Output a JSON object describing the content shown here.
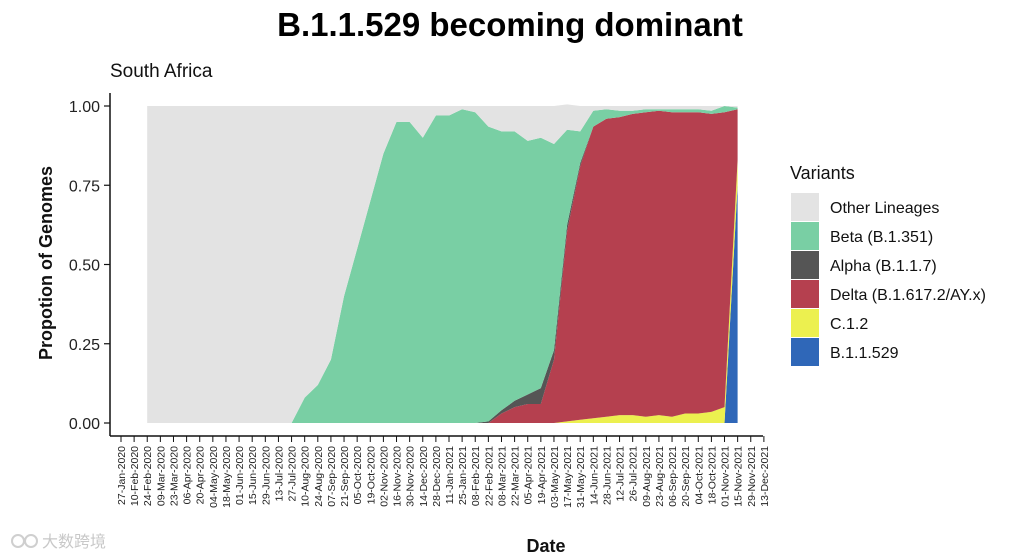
{
  "watermark": {
    "text": "大数跨境",
    "icon": "owl-logo"
  },
  "chart_data": {
    "type": "area",
    "title": "B.1.1.529 becoming dominant",
    "subtitle": "South Africa",
    "xlabel": "Date",
    "ylabel": "Propotion of Genomes",
    "ylim": [
      0,
      1
    ],
    "yticks": [
      0,
      0.25,
      0.5,
      0.75,
      1
    ],
    "ytick_labels": [
      "0.00",
      "0.25",
      "0.50",
      "0.75",
      "1.00"
    ],
    "grid": false,
    "stacked": true,
    "legend": {
      "title": "Variants",
      "placement": "right",
      "entries": [
        "Other Lineages",
        "Beta (B.1.351)",
        "Alpha (B.1.1.7)",
        "Delta (B.1.617.2/AY.x)",
        "C.1.2",
        "B.1.1.529"
      ]
    },
    "x": [
      "27-Jan-2020",
      "10-Feb-2020",
      "24-Feb-2020",
      "09-Mar-2020",
      "23-Mar-2020",
      "06-Apr-2020",
      "20-Apr-2020",
      "04-May-2020",
      "18-May-2020",
      "01-Jun-2020",
      "15-Jun-2020",
      "29-Jun-2020",
      "13-Jul-2020",
      "27-Jul-2020",
      "10-Aug-2020",
      "24-Aug-2020",
      "07-Sep-2020",
      "21-Sep-2020",
      "05-Oct-2020",
      "19-Oct-2020",
      "02-Nov-2020",
      "16-Nov-2020",
      "30-Nov-2020",
      "14-Dec-2020",
      "28-Dec-2020",
      "11-Jan-2021",
      "25-Jan-2021",
      "08-Feb-2021",
      "22-Feb-2021",
      "08-Mar-2021",
      "22-Mar-2021",
      "05-Apr-2021",
      "19-Apr-2021",
      "03-May-2021",
      "17-May-2021",
      "31-May-2021",
      "14-Jun-2021",
      "28-Jun-2021",
      "12-Jul-2021",
      "26-Jul-2021",
      "09-Aug-2021",
      "23-Aug-2021",
      "06-Sep-2021",
      "20-Sep-2021",
      "04-Oct-2021",
      "18-Oct-2021",
      "01-Nov-2021",
      "15-Nov-2021",
      "29-Nov-2021",
      "13-Dec-2021"
    ],
    "series": [
      {
        "name": "B.1.1.529",
        "color": "#2f67b8",
        "values": [
          null,
          null,
          0,
          0,
          0,
          0,
          0,
          0,
          0,
          0,
          0,
          0,
          0,
          0,
          0,
          0,
          0,
          0,
          0,
          0,
          0,
          0,
          0,
          0,
          0,
          0,
          0,
          0,
          0,
          0,
          0,
          0,
          0,
          0,
          0,
          0,
          0,
          0,
          0,
          0,
          0,
          0,
          0,
          0,
          0,
          0,
          0,
          0.75,
          null,
          null
        ]
      },
      {
        "name": "C.1.2",
        "color": "#ecf04f",
        "values": [
          null,
          null,
          0,
          0,
          0,
          0,
          0,
          0,
          0,
          0,
          0,
          0,
          0,
          0,
          0,
          0,
          0,
          0,
          0,
          0,
          0,
          0,
          0,
          0,
          0,
          0,
          0,
          0,
          0,
          0,
          0,
          0,
          0,
          0,
          0.005,
          0.01,
          0.015,
          0.02,
          0.025,
          0.025,
          0.02,
          0.025,
          0.02,
          0.03,
          0.03,
          0.035,
          0.05,
          0.08,
          null,
          null
        ]
      },
      {
        "name": "Delta (B.1.617.2/AY.x)",
        "color": "#b5404f",
        "values": [
          null,
          null,
          0,
          0,
          0,
          0,
          0,
          0,
          0,
          0,
          0,
          0,
          0,
          0,
          0,
          0,
          0,
          0,
          0,
          0,
          0,
          0,
          0,
          0,
          0,
          0,
          0,
          0,
          0,
          0.03,
          0.05,
          0.06,
          0.06,
          0.2,
          0.6,
          0.8,
          0.92,
          0.94,
          0.94,
          0.95,
          0.96,
          0.96,
          0.96,
          0.95,
          0.95,
          0.94,
          0.93,
          0.16,
          null,
          null
        ]
      },
      {
        "name": "Alpha (B.1.1.7)",
        "color": "#555555",
        "values": [
          null,
          null,
          0,
          0,
          0,
          0,
          0,
          0,
          0,
          0,
          0,
          0,
          0,
          0,
          0,
          0,
          0,
          0,
          0,
          0,
          0,
          0,
          0,
          0,
          0,
          0,
          0,
          0,
          0.005,
          0.01,
          0.02,
          0.03,
          0.05,
          0.03,
          0.02,
          0.01,
          0,
          0,
          0,
          0,
          0,
          0,
          0,
          0,
          0,
          0,
          0,
          0,
          null,
          null
        ]
      },
      {
        "name": "Beta (B.1.351)",
        "color": "#79cfa4",
        "values": [
          null,
          null,
          0,
          0,
          0,
          0,
          0,
          0,
          0,
          0,
          0,
          0,
          0,
          0,
          0.08,
          0.12,
          0.2,
          0.4,
          0.55,
          0.7,
          0.85,
          0.95,
          0.95,
          0.9,
          0.97,
          0.97,
          0.99,
          0.98,
          0.93,
          0.88,
          0.85,
          0.8,
          0.79,
          0.65,
          0.3,
          0.1,
          0.05,
          0.03,
          0.02,
          0.01,
          0.01,
          0.005,
          0.01,
          0.01,
          0.01,
          0.01,
          0.02,
          0.005,
          null,
          null
        ]
      },
      {
        "name": "Other Lineages",
        "color": "#e3e3e3",
        "values": [
          null,
          null,
          1,
          1,
          1,
          1,
          1,
          1,
          1,
          1,
          1,
          1,
          1,
          1,
          0.92,
          0.88,
          0.8,
          0.6,
          0.45,
          0.3,
          0.15,
          0.05,
          0.05,
          0.1,
          0.03,
          0.03,
          0.01,
          0.02,
          0.065,
          0.08,
          0.08,
          0.11,
          0.1,
          0.12,
          0.08,
          0.08,
          0.015,
          0.01,
          0.015,
          0.015,
          0.01,
          0.01,
          0.01,
          0.01,
          0.01,
          0.015,
          0,
          0.005,
          null,
          null
        ]
      }
    ]
  }
}
